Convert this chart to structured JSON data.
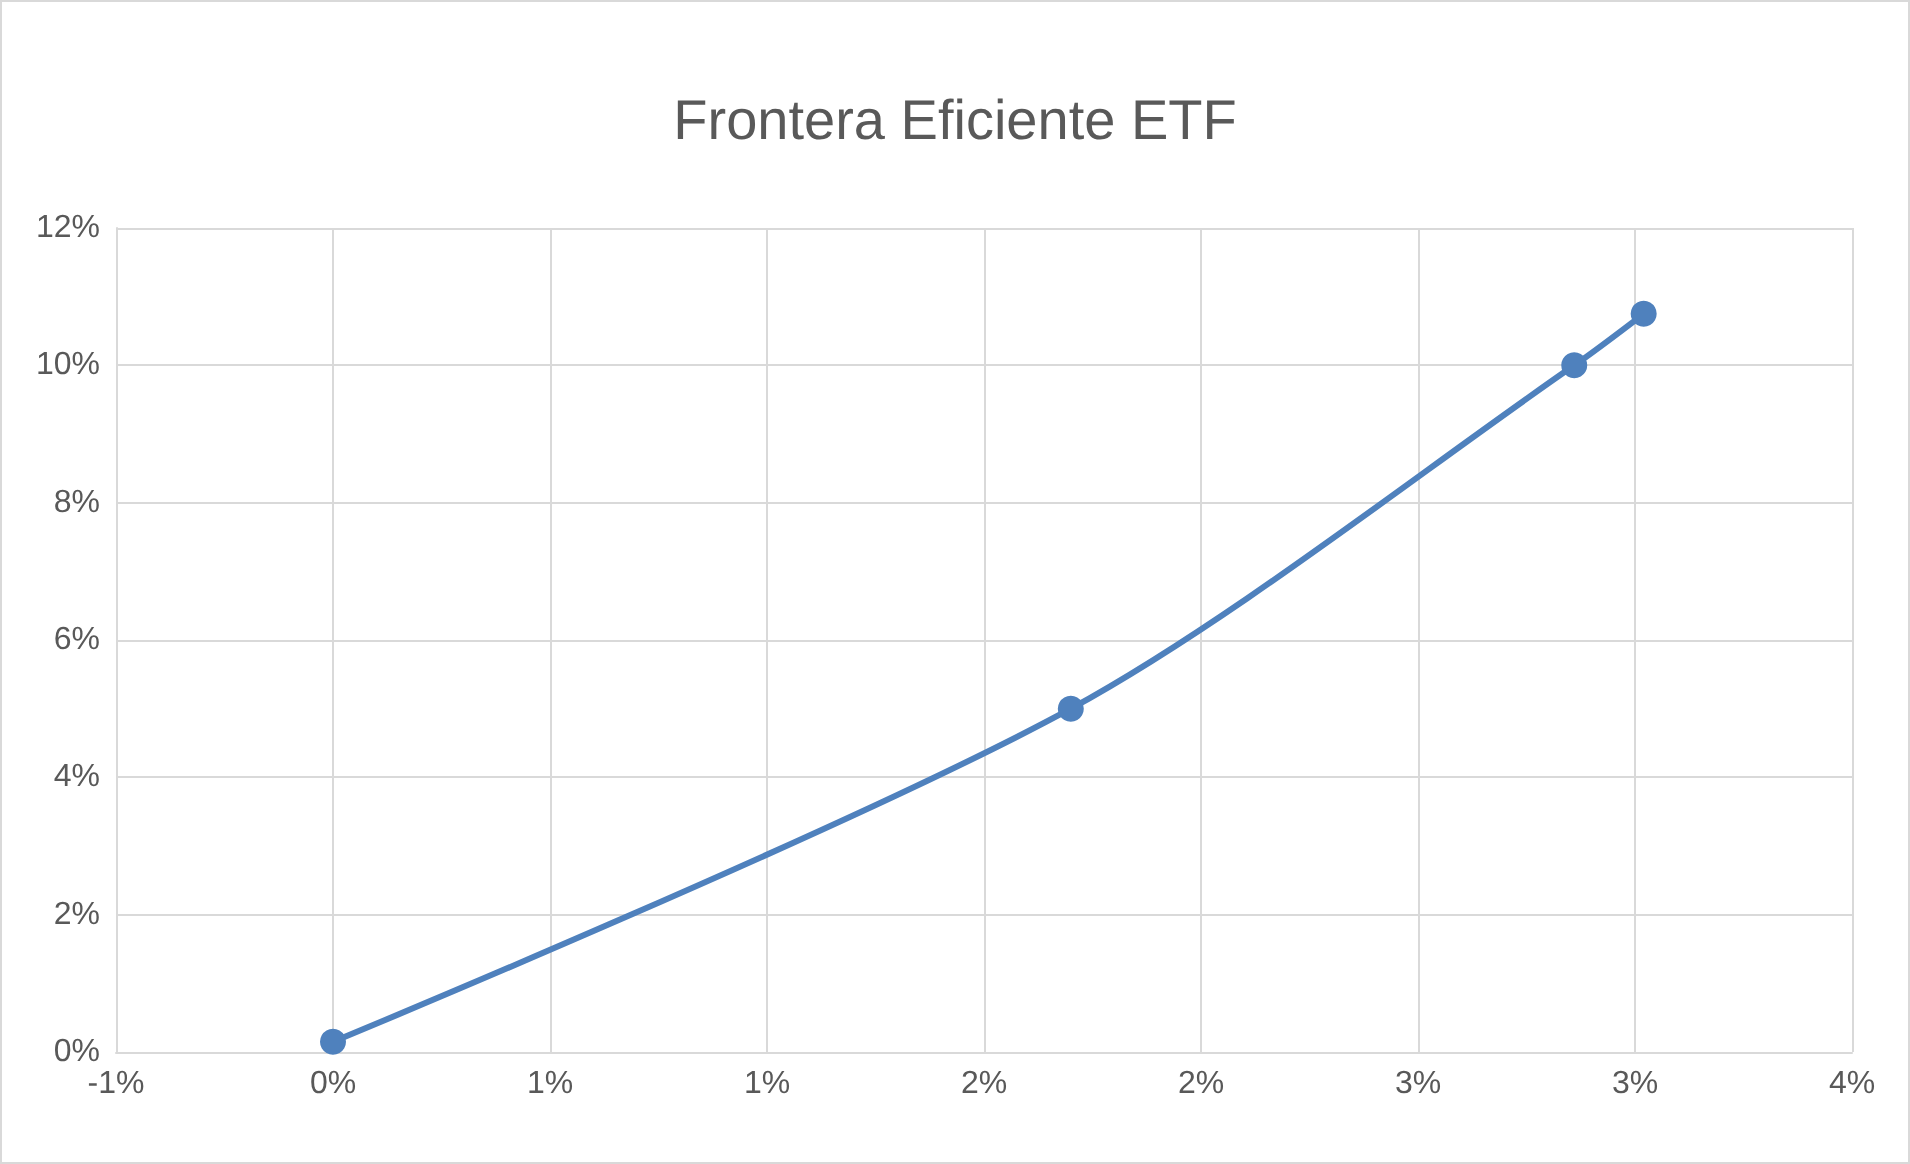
{
  "chart_data": {
    "type": "line",
    "title": "Frontera Eficiente ETF",
    "x": [
      0,
      1.7,
      2.86,
      3.02
    ],
    "series": [
      {
        "color": "#4f81bd",
        "values": [
          0.15,
          5,
          10,
          10.75
        ]
      }
    ],
    "xlim": [
      -0.5,
      3.5
    ],
    "xticks": [
      {
        "value": -0.5,
        "label": "-1%"
      },
      {
        "value": 0,
        "label": "0%"
      },
      {
        "value": 0.5,
        "label": "1%"
      },
      {
        "value": 1,
        "label": "1%"
      },
      {
        "value": 1.5,
        "label": "2%"
      },
      {
        "value": 2,
        "label": "2%"
      },
      {
        "value": 2.5,
        "label": "3%"
      },
      {
        "value": 3,
        "label": "3%"
      },
      {
        "value": 3.5,
        "label": "4%"
      }
    ],
    "ylim": [
      0,
      12
    ],
    "yticks": [
      {
        "value": 0,
        "label": "0%"
      },
      {
        "value": 2,
        "label": "2%"
      },
      {
        "value": 4,
        "label": "4%"
      },
      {
        "value": 6,
        "label": "6%"
      },
      {
        "value": 8,
        "label": "8%"
      },
      {
        "value": 10,
        "label": "10%"
      },
      {
        "value": 12,
        "label": "12%"
      }
    ],
    "grid": true,
    "marker": "circle",
    "line_style": "solid"
  }
}
